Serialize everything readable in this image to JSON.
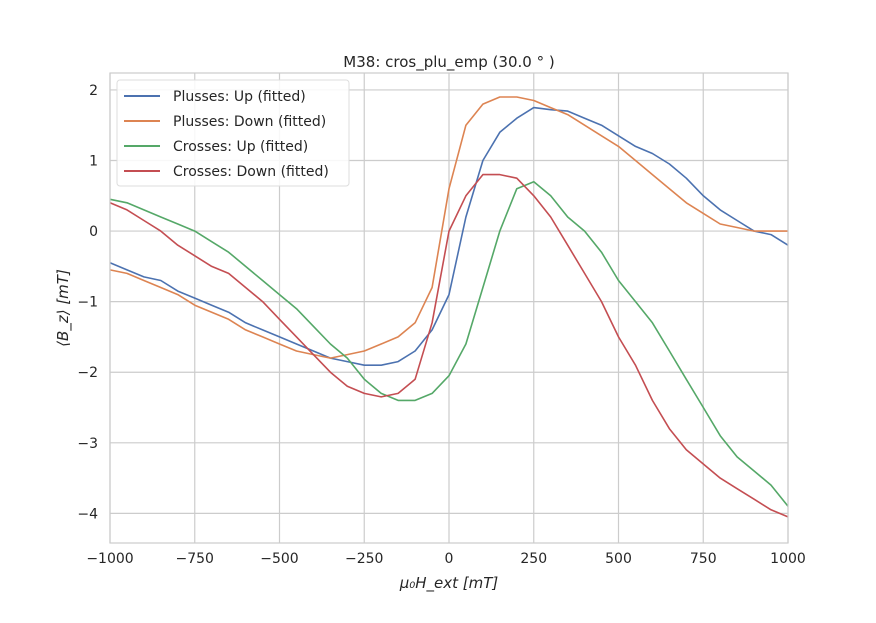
{
  "chart_data": {
    "type": "line",
    "title": "M38: cros_plu_emp (30.0$^\\circ$)",
    "title_display": "M38: cros_plu_emp (30.0 ° )",
    "xlabel": "μ₀H_ext [mT]",
    "ylabel": "⟨B_z⟩ [mT]",
    "xlim": [
      -1000,
      1000
    ],
    "ylim": [
      -4.42,
      2.24
    ],
    "grid": true,
    "legend_placement": "top-left",
    "xticks": [
      -1000,
      -750,
      -500,
      -250,
      0,
      250,
      500,
      750,
      1000
    ],
    "xtick_labels": [
      "−1000",
      "−750",
      "−500",
      "−250",
      "0",
      "250",
      "500",
      "750",
      "1000"
    ],
    "yticks": [
      -4,
      -3,
      -2,
      -1,
      0,
      1,
      2
    ],
    "ytick_labels": [
      "−4",
      "−3",
      "−2",
      "−1",
      "0",
      "1",
      "2"
    ],
    "x": [
      -1000,
      -950,
      -900,
      -850,
      -800,
      -750,
      -700,
      -650,
      -600,
      -550,
      -500,
      -450,
      -400,
      -350,
      -300,
      -250,
      -200,
      -150,
      -100,
      -50,
      0,
      50,
      100,
      150,
      200,
      250,
      300,
      350,
      400,
      450,
      500,
      550,
      600,
      650,
      700,
      750,
      800,
      850,
      900,
      950,
      1000
    ],
    "series": [
      {
        "name": "Plusses: Up (fitted)",
        "color": "#4c72b0",
        "values": [
          -0.45,
          -0.55,
          -0.65,
          -0.7,
          -0.85,
          -0.95,
          -1.05,
          -1.15,
          -1.3,
          -1.4,
          -1.5,
          -1.6,
          -1.7,
          -1.8,
          -1.85,
          -1.9,
          -1.9,
          -1.85,
          -1.7,
          -1.4,
          -0.9,
          0.2,
          1.0,
          1.4,
          1.6,
          1.75,
          1.72,
          1.7,
          1.6,
          1.5,
          1.35,
          1.2,
          1.1,
          0.95,
          0.75,
          0.5,
          0.3,
          0.15,
          0.0,
          -0.05,
          -0.2
        ]
      },
      {
        "name": "Plusses: Down (fitted)",
        "color": "#dd8452",
        "values": [
          -0.55,
          -0.6,
          -0.7,
          -0.8,
          -0.9,
          -1.05,
          -1.15,
          -1.25,
          -1.4,
          -1.5,
          -1.6,
          -1.7,
          -1.75,
          -1.8,
          -1.75,
          -1.7,
          -1.6,
          -1.5,
          -1.3,
          -0.8,
          0.6,
          1.5,
          1.8,
          1.9,
          1.9,
          1.85,
          1.75,
          1.65,
          1.5,
          1.35,
          1.2,
          1.0,
          0.8,
          0.6,
          0.4,
          0.25,
          0.1,
          0.05,
          0.0,
          0.0,
          0.0
        ]
      },
      {
        "name": "Crosses: Up (fitted)",
        "color": "#55a868",
        "values": [
          0.45,
          0.4,
          0.3,
          0.2,
          0.1,
          0.0,
          -0.15,
          -0.3,
          -0.5,
          -0.7,
          -0.9,
          -1.1,
          -1.35,
          -1.6,
          -1.8,
          -2.1,
          -2.3,
          -2.4,
          -2.4,
          -2.3,
          -2.05,
          -1.6,
          -0.8,
          0.0,
          0.6,
          0.7,
          0.5,
          0.2,
          0.0,
          -0.3,
          -0.7,
          -1.0,
          -1.3,
          -1.7,
          -2.1,
          -2.5,
          -2.9,
          -3.2,
          -3.4,
          -3.6,
          -3.9
        ]
      },
      {
        "name": "Crosses: Down (fitted)",
        "color": "#c44e52",
        "values": [
          0.4,
          0.3,
          0.15,
          0.0,
          -0.2,
          -0.35,
          -0.5,
          -0.6,
          -0.8,
          -1.0,
          -1.25,
          -1.5,
          -1.75,
          -2.0,
          -2.2,
          -2.3,
          -2.35,
          -2.3,
          -2.1,
          -1.3,
          0.0,
          0.5,
          0.8,
          0.8,
          0.75,
          0.5,
          0.2,
          -0.2,
          -0.6,
          -1.0,
          -1.5,
          -1.9,
          -2.4,
          -2.8,
          -3.1,
          -3.3,
          -3.5,
          -3.65,
          -3.8,
          -3.95,
          -4.05
        ]
      }
    ]
  }
}
